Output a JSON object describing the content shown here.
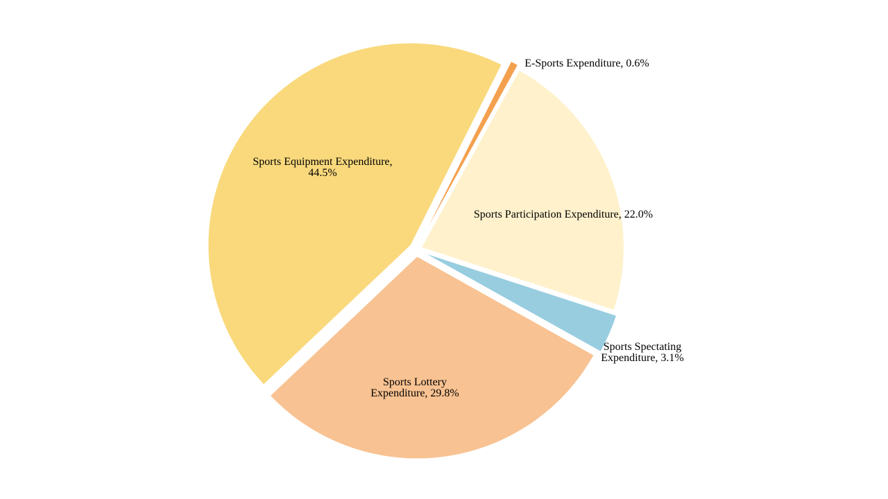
{
  "chart_data": {
    "type": "pie",
    "title": "",
    "slices": [
      {
        "label": "E-Sports Expenditure",
        "value": 0.6,
        "value_label": "0.6%",
        "color": "#F4A04E"
      },
      {
        "label": "Sports Participation Expenditure",
        "value": 22.0,
        "value_label": "22.0%",
        "color": "#FFF1CC"
      },
      {
        "label": "Sports Spectating Expenditure",
        "value": 3.1,
        "value_label": "3.1%",
        "color": "#98CDE0"
      },
      {
        "label": "Sports Lottery Expenditure",
        "value": 29.8,
        "value_label": "29.8%",
        "color": "#F8C292"
      },
      {
        "label": "Sports Equipment Expenditure",
        "value": 44.5,
        "value_label": "44.5%",
        "color": "#F9D97C"
      }
    ],
    "legend": "none",
    "exploded": true
  }
}
